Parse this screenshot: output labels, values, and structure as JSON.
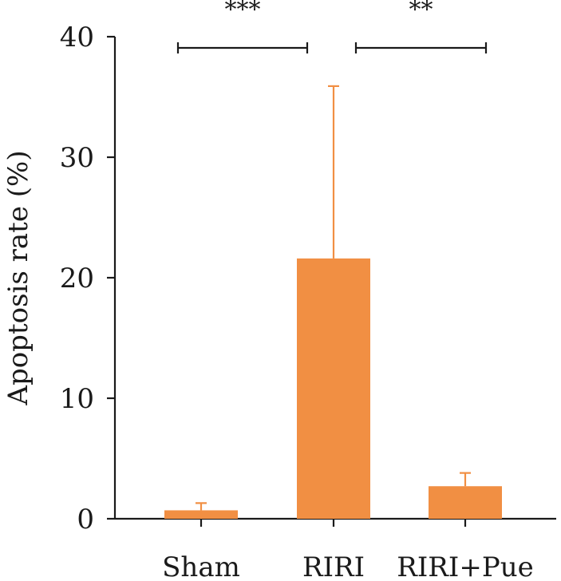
{
  "chart_data": {
    "type": "bar",
    "categories": [
      "Sham",
      "RIRI",
      "RIRI+Pue"
    ],
    "values": [
      0.7,
      21.6,
      2.7
    ],
    "error_upper": [
      1.3,
      35.9,
      3.8
    ],
    "ylabel": "Apoptosis rate (%)",
    "xlabel": "",
    "ylim": [
      0,
      40
    ],
    "yticks": [
      0,
      10,
      20,
      30,
      40
    ],
    "yticks_labels": [
      "0",
      "10",
      "20",
      "30",
      "40"
    ],
    "bar_color": "#F18F43",
    "grid": false,
    "significance": [
      {
        "from": "Sham",
        "to": "RIRI",
        "label": "***"
      },
      {
        "from": "RIRI",
        "to": "RIRI+Pue",
        "label": "**"
      }
    ]
  }
}
